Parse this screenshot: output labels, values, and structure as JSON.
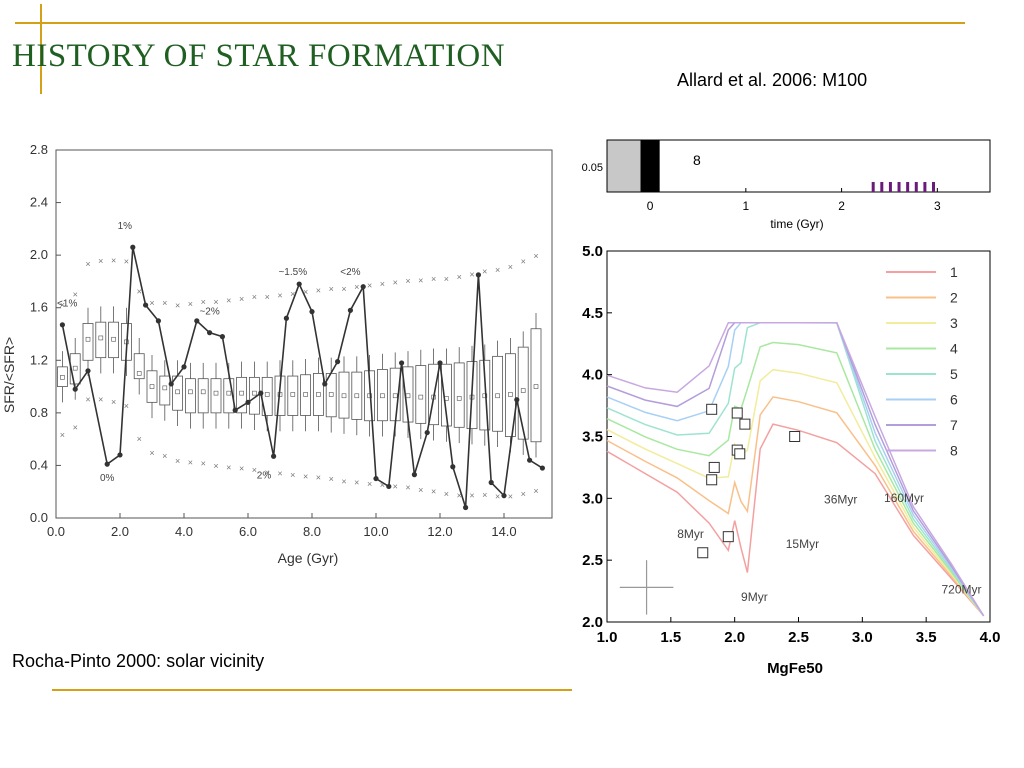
{
  "slide": {
    "title": "HISTORY OF STAR FORMATION",
    "subtitle": "Allard et al.  2006: M100",
    "caption": "Rocha-Pinto 2000: solar vicinity",
    "accent_color": "#d4a017",
    "title_color": "#1f5f22"
  },
  "chart_data": [
    {
      "type": "line",
      "xlabel": "Age (Gyr)",
      "ylabel": "SFR/<SFR>",
      "xlim": [
        0,
        15.5
      ],
      "ylim": [
        0,
        2.8
      ],
      "xticks": [
        "0.0",
        "2.0",
        "4.0",
        "6.0",
        "8.0",
        "10.0",
        "12.0",
        "14.0"
      ],
      "yticks": [
        "0.0",
        "0.4",
        "0.8",
        "1.2",
        "1.6",
        "2.0",
        "2.4",
        "2.8"
      ],
      "series": [
        {
          "x": [
            0.2,
            0.6,
            1.0,
            1.6,
            2.0,
            2.4,
            2.8,
            3.2,
            3.6,
            4.0,
            4.4,
            4.8,
            5.2,
            5.6,
            6.0,
            6.4,
            6.8,
            7.2,
            7.6,
            8.0,
            8.4,
            8.8,
            9.2,
            9.6,
            10.0,
            10.4,
            10.8,
            11.2,
            11.6,
            12.0,
            12.4,
            12.8,
            13.2,
            13.6,
            14.0,
            14.4,
            14.8,
            15.2
          ],
          "y": [
            1.47,
            0.98,
            1.12,
            0.41,
            0.48,
            2.06,
            1.62,
            1.5,
            1.02,
            1.15,
            1.5,
            1.41,
            1.38,
            0.82,
            0.88,
            0.95,
            0.47,
            1.52,
            1.78,
            1.57,
            1.02,
            1.19,
            1.58,
            1.76,
            0.3,
            0.24,
            1.18,
            0.33,
            0.65,
            1.18,
            0.39,
            0.08,
            1.85,
            0.27,
            0.17,
            0.9,
            0.44,
            0.38
          ]
        }
      ],
      "boxes": {
        "x": [
          0.2,
          0.6,
          1.0,
          1.4,
          1.8,
          2.2,
          2.6,
          3.0,
          3.4,
          3.8,
          4.2,
          4.6,
          5.0,
          5.4,
          5.8,
          6.2,
          6.6,
          7.0,
          7.4,
          7.8,
          8.2,
          8.6,
          9.0,
          9.4,
          9.8,
          10.2,
          10.6,
          11.0,
          11.4,
          11.8,
          12.2,
          12.6,
          13.0,
          13.4,
          13.8,
          14.2,
          14.6,
          15.0
        ],
        "q1": [
          1.0,
          1.02,
          1.2,
          1.22,
          1.22,
          1.2,
          1.06,
          0.88,
          0.86,
          0.82,
          0.8,
          0.8,
          0.8,
          0.8,
          0.8,
          0.79,
          0.78,
          0.78,
          0.78,
          0.78,
          0.78,
          0.77,
          0.76,
          0.75,
          0.74,
          0.74,
          0.74,
          0.73,
          0.72,
          0.71,
          0.7,
          0.69,
          0.68,
          0.67,
          0.66,
          0.62,
          0.6,
          0.58
        ],
        "median": [
          1.07,
          1.14,
          1.36,
          1.37,
          1.36,
          1.34,
          1.1,
          1.0,
          0.99,
          0.96,
          0.96,
          0.96,
          0.95,
          0.95,
          0.95,
          0.95,
          0.94,
          0.94,
          0.94,
          0.94,
          0.94,
          0.94,
          0.93,
          0.93,
          0.93,
          0.93,
          0.93,
          0.93,
          0.92,
          0.92,
          0.91,
          0.91,
          0.92,
          0.93,
          0.93,
          0.94,
          0.97,
          1.0
        ],
        "q3": [
          1.15,
          1.25,
          1.48,
          1.49,
          1.49,
          1.48,
          1.25,
          1.12,
          1.08,
          1.08,
          1.06,
          1.06,
          1.06,
          1.06,
          1.07,
          1.07,
          1.07,
          1.08,
          1.08,
          1.09,
          1.1,
          1.1,
          1.11,
          1.11,
          1.12,
          1.13,
          1.14,
          1.15,
          1.16,
          1.17,
          1.17,
          1.18,
          1.19,
          1.2,
          1.23,
          1.25,
          1.3,
          1.44
        ]
      },
      "annotations": [
        {
          "text": "<1%",
          "x": 0.35,
          "y": 1.61
        },
        {
          "text": "1%",
          "x": 2.15,
          "y": 2.2
        },
        {
          "text": "~2%",
          "x": 4.8,
          "y": 1.55
        },
        {
          "text": "~1.5%",
          "x": 7.4,
          "y": 1.85
        },
        {
          "text": "<2%",
          "x": 9.2,
          "y": 1.85
        },
        {
          "text": "0%",
          "x": 1.6,
          "y": 0.28
        },
        {
          "text": "2%",
          "x": 6.5,
          "y": 0.3
        }
      ]
    },
    {
      "type": "bar",
      "xlim": [
        -0.45,
        3.55
      ],
      "xticks": [
        "0",
        "1",
        "2",
        "3"
      ],
      "xlabel": "time (Gyr)",
      "ytick": "0.05",
      "label": "8",
      "bar_values": [
        2.33,
        2.42,
        2.51,
        2.6,
        2.69,
        2.78,
        2.87,
        2.96
      ],
      "colors": {
        "gray": "#c8c8c8",
        "black": "#000000",
        "bars": "#6a1b7a"
      }
    },
    {
      "type": "line",
      "xlabel": "MgFe50",
      "xlim": [
        1.0,
        4.0
      ],
      "ylim": [
        2.0,
        5.0
      ],
      "xticks": [
        "1.0",
        "1.5",
        "2.0",
        "2.5",
        "3.0",
        "3.5",
        "4.0"
      ],
      "yticks": [
        "2.0",
        "2.5",
        "3.0",
        "3.5",
        "4.0",
        "4.5",
        "5.0"
      ],
      "legend": [
        "1",
        "2",
        "3",
        "4",
        "5",
        "6",
        "7",
        "8"
      ],
      "legend_colors": [
        "#f4a0a0",
        "#f9c08a",
        "#f2ec9c",
        "#a8e8a0",
        "#9de4d0",
        "#a8d0f4",
        "#b39ddb",
        "#c8a8e0"
      ],
      "age_labels": [
        {
          "text": "8Myr",
          "x": 1.55,
          "y": 2.68
        },
        {
          "text": "9Myr",
          "x": 2.05,
          "y": 2.17
        },
        {
          "text": "15Myr",
          "x": 2.4,
          "y": 2.6
        },
        {
          "text": "36Myr",
          "x": 2.7,
          "y": 2.96
        },
        {
          "text": "160Myr",
          "x": 3.17,
          "y": 2.97
        },
        {
          "text": "720Myr",
          "x": 3.62,
          "y": 2.23
        }
      ],
      "squares": [
        {
          "x": 1.82,
          "y": 3.72
        },
        {
          "x": 2.02,
          "y": 3.69
        },
        {
          "x": 2.08,
          "y": 3.6
        },
        {
          "x": 2.02,
          "y": 3.39
        },
        {
          "x": 2.04,
          "y": 3.36
        },
        {
          "x": 1.84,
          "y": 3.25
        },
        {
          "x": 1.82,
          "y": 3.15
        },
        {
          "x": 2.47,
          "y": 3.5
        },
        {
          "x": 1.95,
          "y": 2.69
        },
        {
          "x": 1.75,
          "y": 2.56
        }
      ],
      "error_bar": {
        "x": 1.31,
        "y": 2.28,
        "dx": 0.21,
        "dy": 0.22
      }
    }
  ]
}
